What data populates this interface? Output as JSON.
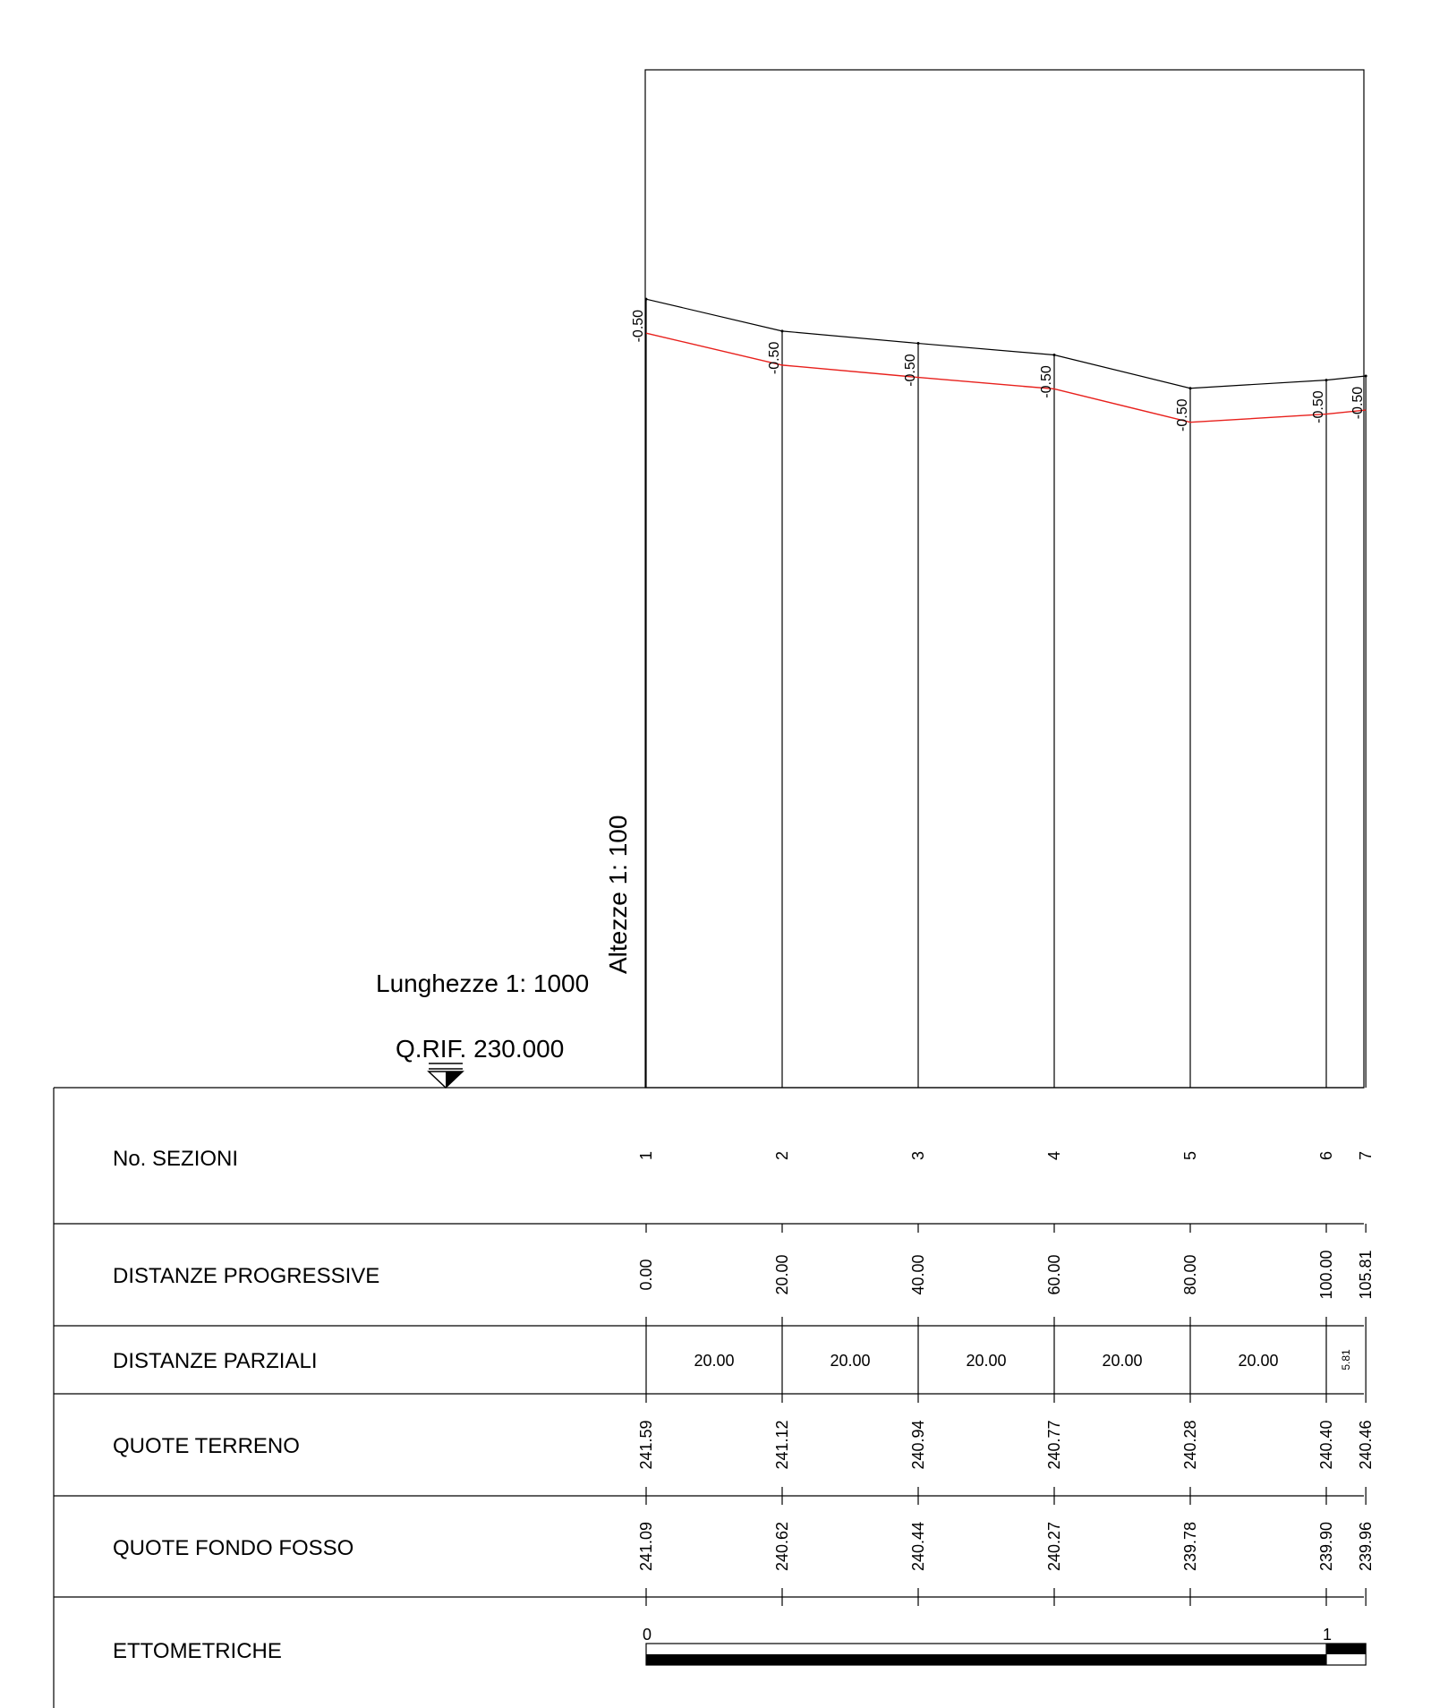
{
  "header": {
    "scale_lengths": "Lunghezze 1: 1000",
    "scale_heights": "Altezze 1: 100",
    "reference_level": "Q.RIF. 230.000"
  },
  "rows": {
    "sections": "No. SEZIONI",
    "progressive": "DISTANZE PROGRESSIVE",
    "partial": "DISTANZE PARZIALI",
    "ground": "QUOTE TERRENO",
    "ditch": "QUOTE FONDO FOSSO",
    "hectometric": "ETTOMETRICHE"
  },
  "colors": {
    "line": "#000000",
    "ditch_profile": "#e8201c",
    "background": "#ffffff"
  },
  "chart_data": {
    "type": "line",
    "reference_elevation": 230.0,
    "sections": [
      "1",
      "2",
      "3",
      "4",
      "5",
      "6",
      "7"
    ],
    "x": [
      0.0,
      20.0,
      40.0,
      60.0,
      80.0,
      100.0,
      105.81
    ],
    "x_labels": [
      "0.00",
      "20.00",
      "40.00",
      "60.00",
      "80.00",
      "100.00",
      "105.81"
    ],
    "partial_distances": [
      "20.00",
      "20.00",
      "20.00",
      "20.00",
      "20.00",
      "5.81"
    ],
    "series": [
      {
        "key": "ground",
        "values": [
          241.59,
          241.12,
          240.94,
          240.77,
          240.28,
          240.4,
          240.46
        ],
        "labels": [
          "241.59",
          "241.12",
          "240.94",
          "240.77",
          "240.28",
          "240.40",
          "240.46"
        ]
      },
      {
        "key": "ditch",
        "values": [
          241.09,
          240.62,
          240.44,
          240.27,
          239.78,
          239.9,
          239.96
        ],
        "labels": [
          "241.09",
          "240.62",
          "240.44",
          "240.27",
          "239.78",
          "239.90",
          "239.96"
        ]
      }
    ],
    "deltas": [
      "-0.50",
      "-0.50",
      "-0.50",
      "-0.50",
      "-0.50",
      "-0.50",
      "-0.50"
    ],
    "hectometric_ticks": [
      {
        "label": "0",
        "value": 0
      },
      {
        "label": "1",
        "value": 100
      }
    ]
  }
}
